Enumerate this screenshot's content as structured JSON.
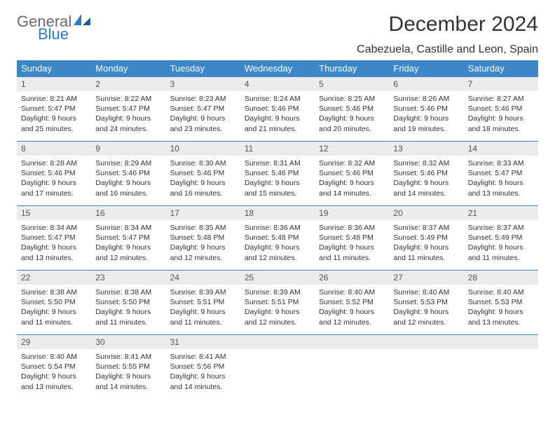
{
  "logo": {
    "general": "General",
    "blue": "Blue"
  },
  "title": "December 2024",
  "location": "Cabezuela, Castille and Leon, Spain",
  "colors": {
    "header_bg": "#3b87c8",
    "header_text": "#ffffff",
    "daynum_bg": "#ececec",
    "border": "#3b87c8",
    "logo_gray": "#6b6b6b",
    "logo_blue": "#2f79c2"
  },
  "day_headers": [
    "Sunday",
    "Monday",
    "Tuesday",
    "Wednesday",
    "Thursday",
    "Friday",
    "Saturday"
  ],
  "weeks": [
    [
      {
        "n": "1",
        "sr": "8:21 AM",
        "ss": "5:47 PM",
        "dl": "9 hours and 25 minutes."
      },
      {
        "n": "2",
        "sr": "8:22 AM",
        "ss": "5:47 PM",
        "dl": "9 hours and 24 minutes."
      },
      {
        "n": "3",
        "sr": "8:23 AM",
        "ss": "5:47 PM",
        "dl": "9 hours and 23 minutes."
      },
      {
        "n": "4",
        "sr": "8:24 AM",
        "ss": "5:46 PM",
        "dl": "9 hours and 21 minutes."
      },
      {
        "n": "5",
        "sr": "8:25 AM",
        "ss": "5:46 PM",
        "dl": "9 hours and 20 minutes."
      },
      {
        "n": "6",
        "sr": "8:26 AM",
        "ss": "5:46 PM",
        "dl": "9 hours and 19 minutes."
      },
      {
        "n": "7",
        "sr": "8:27 AM",
        "ss": "5:46 PM",
        "dl": "9 hours and 18 minutes."
      }
    ],
    [
      {
        "n": "8",
        "sr": "8:28 AM",
        "ss": "5:46 PM",
        "dl": "9 hours and 17 minutes."
      },
      {
        "n": "9",
        "sr": "8:29 AM",
        "ss": "5:46 PM",
        "dl": "9 hours and 16 minutes."
      },
      {
        "n": "10",
        "sr": "8:30 AM",
        "ss": "5:46 PM",
        "dl": "9 hours and 16 minutes."
      },
      {
        "n": "11",
        "sr": "8:31 AM",
        "ss": "5:46 PM",
        "dl": "9 hours and 15 minutes."
      },
      {
        "n": "12",
        "sr": "8:32 AM",
        "ss": "5:46 PM",
        "dl": "9 hours and 14 minutes."
      },
      {
        "n": "13",
        "sr": "8:32 AM",
        "ss": "5:46 PM",
        "dl": "9 hours and 14 minutes."
      },
      {
        "n": "14",
        "sr": "8:33 AM",
        "ss": "5:47 PM",
        "dl": "9 hours and 13 minutes."
      }
    ],
    [
      {
        "n": "15",
        "sr": "8:34 AM",
        "ss": "5:47 PM",
        "dl": "9 hours and 13 minutes."
      },
      {
        "n": "16",
        "sr": "8:34 AM",
        "ss": "5:47 PM",
        "dl": "9 hours and 12 minutes."
      },
      {
        "n": "17",
        "sr": "8:35 AM",
        "ss": "5:48 PM",
        "dl": "9 hours and 12 minutes."
      },
      {
        "n": "18",
        "sr": "8:36 AM",
        "ss": "5:48 PM",
        "dl": "9 hours and 12 minutes."
      },
      {
        "n": "19",
        "sr": "8:36 AM",
        "ss": "5:48 PM",
        "dl": "9 hours and 11 minutes."
      },
      {
        "n": "20",
        "sr": "8:37 AM",
        "ss": "5:49 PM",
        "dl": "9 hours and 11 minutes."
      },
      {
        "n": "21",
        "sr": "8:37 AM",
        "ss": "5:49 PM",
        "dl": "9 hours and 11 minutes."
      }
    ],
    [
      {
        "n": "22",
        "sr": "8:38 AM",
        "ss": "5:50 PM",
        "dl": "9 hours and 11 minutes."
      },
      {
        "n": "23",
        "sr": "8:38 AM",
        "ss": "5:50 PM",
        "dl": "9 hours and 11 minutes."
      },
      {
        "n": "24",
        "sr": "8:39 AM",
        "ss": "5:51 PM",
        "dl": "9 hours and 11 minutes."
      },
      {
        "n": "25",
        "sr": "8:39 AM",
        "ss": "5:51 PM",
        "dl": "9 hours and 12 minutes."
      },
      {
        "n": "26",
        "sr": "8:40 AM",
        "ss": "5:52 PM",
        "dl": "9 hours and 12 minutes."
      },
      {
        "n": "27",
        "sr": "8:40 AM",
        "ss": "5:53 PM",
        "dl": "9 hours and 12 minutes."
      },
      {
        "n": "28",
        "sr": "8:40 AM",
        "ss": "5:53 PM",
        "dl": "9 hours and 13 minutes."
      }
    ],
    [
      {
        "n": "29",
        "sr": "8:40 AM",
        "ss": "5:54 PM",
        "dl": "9 hours and 13 minutes."
      },
      {
        "n": "30",
        "sr": "8:41 AM",
        "ss": "5:55 PM",
        "dl": "9 hours and 14 minutes."
      },
      {
        "n": "31",
        "sr": "8:41 AM",
        "ss": "5:56 PM",
        "dl": "9 hours and 14 minutes."
      },
      null,
      null,
      null,
      null
    ]
  ],
  "labels": {
    "sunrise": "Sunrise:",
    "sunset": "Sunset:",
    "daylight": "Daylight:"
  }
}
